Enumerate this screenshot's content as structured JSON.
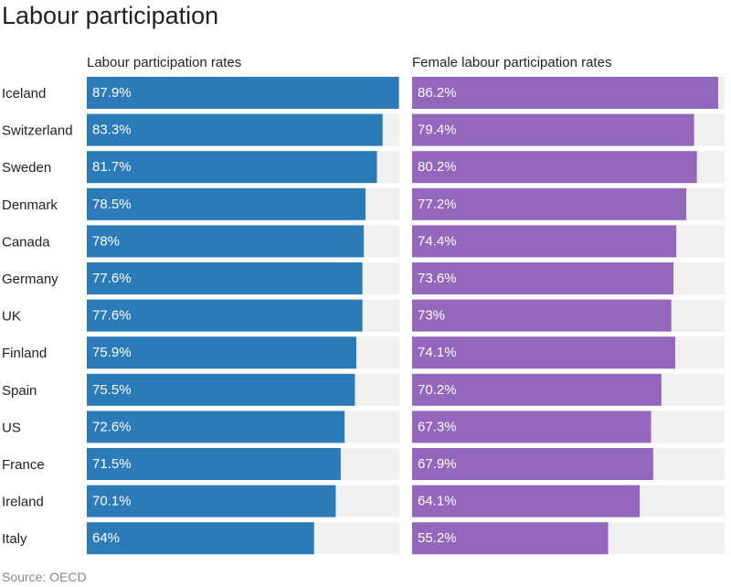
{
  "chart_data": {
    "type": "bar",
    "title": "Labour participation",
    "source": "Source: OECD",
    "categories": [
      "Iceland",
      "Switzerland",
      "Sweden",
      "Denmark",
      "Canada",
      "Germany",
      "UK",
      "Finland",
      "Spain",
      "US",
      "France",
      "Ireland",
      "Italy"
    ],
    "xlim": [
      0,
      88
    ],
    "series": [
      {
        "name": "Labour participation rates",
        "color": "#2b7bb9",
        "values": [
          87.9,
          83.3,
          81.7,
          78.5,
          78,
          77.6,
          77.6,
          75.9,
          75.5,
          72.6,
          71.5,
          70.1,
          64
        ],
        "labels": [
          "87.9%",
          "83.3%",
          "81.7%",
          "78.5%",
          "78%",
          "77.6%",
          "77.6%",
          "75.9%",
          "75.5%",
          "72.6%",
          "71.5%",
          "70.1%",
          "64%"
        ]
      },
      {
        "name": "Female labour participation rates",
        "color": "#9467bd",
        "values": [
          86.2,
          79.4,
          80.2,
          77.2,
          74.4,
          73.6,
          73,
          74.1,
          70.2,
          67.3,
          67.9,
          64.1,
          55.2
        ],
        "labels": [
          "86.2%",
          "79.4%",
          "80.2%",
          "77.2%",
          "74.4%",
          "73.6%",
          "73%",
          "74.1%",
          "70.2%",
          "67.3%",
          "67.9%",
          "64.1%",
          "55.2%"
        ]
      }
    ]
  }
}
